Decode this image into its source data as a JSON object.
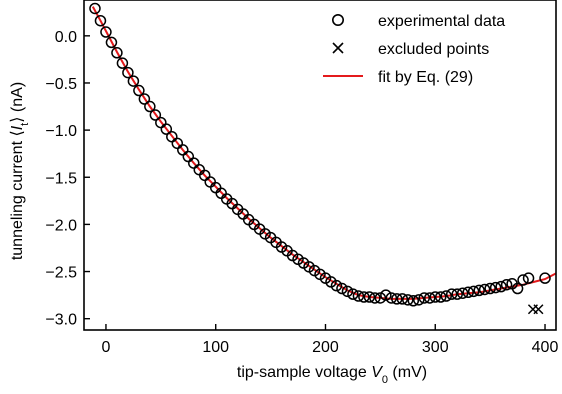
{
  "chart_data": {
    "type": "scatter",
    "xlabel": {
      "pre": "tip-sample voltage ",
      "var": "V",
      "sub": "0",
      "post": "  (mV)"
    },
    "ylabel": {
      "pre": "tunneling current  ⟨",
      "var": "I",
      "sub": "t",
      "post": "⟩  (nA)"
    },
    "xlim": [
      -20,
      410
    ],
    "ylim": [
      -3.12,
      0.38
    ],
    "xticks": [
      0,
      100,
      200,
      300,
      400
    ],
    "xtick_labels": [
      "0",
      "100",
      "200",
      "300",
      "400"
    ],
    "yticks": [
      0.0,
      -0.5,
      -1.0,
      -1.5,
      -2.0,
      -2.5,
      -3.0
    ],
    "ytick_labels": [
      "0.0",
      "−0.5",
      "−1.0",
      "−1.5",
      "−2.0",
      "−2.5",
      "−3.0"
    ],
    "grid": false,
    "legend_position": "top-right",
    "legend": [
      {
        "label": "experimental data",
        "marker": "open-circle"
      },
      {
        "label": "excluded points",
        "marker": "cross"
      },
      {
        "label": "fit by Eq. (29)",
        "marker": "line"
      }
    ],
    "colors": {
      "data": "#000000",
      "fit": "#e41a1c"
    },
    "series": [
      {
        "name": "experimental data",
        "marker": "open-circle",
        "x": [
          -10,
          -5,
          0,
          5,
          10,
          15,
          20,
          25,
          30,
          35,
          40,
          45,
          50,
          55,
          60,
          65,
          70,
          75,
          80,
          85,
          90,
          95,
          100,
          105,
          110,
          115,
          120,
          125,
          130,
          135,
          140,
          145,
          150,
          155,
          160,
          165,
          170,
          175,
          180,
          185,
          190,
          195,
          200,
          205,
          210,
          215,
          220,
          225,
          230,
          235,
          240,
          245,
          250,
          255,
          260,
          265,
          270,
          275,
          280,
          285,
          290,
          295,
          300,
          305,
          310,
          315,
          320,
          325,
          330,
          335,
          340,
          345,
          350,
          355,
          360,
          365,
          370,
          375,
          380,
          385,
          400
        ],
        "y": [
          0.29,
          0.16,
          0.04,
          -0.07,
          -0.18,
          -0.29,
          -0.39,
          -0.48,
          -0.58,
          -0.67,
          -0.75,
          -0.84,
          -0.92,
          -0.99,
          -1.07,
          -1.14,
          -1.21,
          -1.28,
          -1.35,
          -1.42,
          -1.48,
          -1.55,
          -1.61,
          -1.67,
          -1.73,
          -1.78,
          -1.84,
          -1.89,
          -1.95,
          -2.0,
          -2.05,
          -2.1,
          -2.14,
          -2.19,
          -2.24,
          -2.28,
          -2.33,
          -2.37,
          -2.41,
          -2.45,
          -2.49,
          -2.53,
          -2.57,
          -2.61,
          -2.65,
          -2.68,
          -2.71,
          -2.74,
          -2.76,
          -2.77,
          -2.77,
          -2.78,
          -2.78,
          -2.75,
          -2.78,
          -2.79,
          -2.79,
          -2.8,
          -2.81,
          -2.8,
          -2.78,
          -2.78,
          -2.77,
          -2.77,
          -2.76,
          -2.74,
          -2.74,
          -2.73,
          -2.72,
          -2.71,
          -2.7,
          -2.69,
          -2.68,
          -2.67,
          -2.66,
          -2.64,
          -2.63,
          -2.68,
          -2.59,
          -2.57,
          -2.57
        ]
      },
      {
        "name": "excluded points",
        "marker": "cross",
        "x": [
          389,
          394
        ],
        "y": [
          -2.9,
          -2.9
        ]
      },
      {
        "name": "fit by Eq. (29)",
        "marker": "line",
        "x": [
          -12,
          -5,
          0,
          10,
          20,
          30,
          40,
          50,
          60,
          70,
          80,
          90,
          100,
          110,
          120,
          130,
          140,
          150,
          160,
          170,
          180,
          190,
          200,
          210,
          220,
          230,
          240,
          250,
          260,
          270,
          280,
          290,
          300,
          310,
          320,
          330,
          340,
          350,
          360,
          370,
          380,
          390,
          400,
          410
        ],
        "y": [
          0.31,
          0.16,
          0.05,
          -0.17,
          -0.38,
          -0.57,
          -0.75,
          -0.91,
          -1.06,
          -1.21,
          -1.35,
          -1.48,
          -1.6,
          -1.72,
          -1.83,
          -1.94,
          -2.04,
          -2.14,
          -2.23,
          -2.32,
          -2.4,
          -2.48,
          -2.56,
          -2.63,
          -2.7,
          -2.75,
          -2.77,
          -2.78,
          -2.79,
          -2.79,
          -2.79,
          -2.78,
          -2.77,
          -2.76,
          -2.74,
          -2.73,
          -2.72,
          -2.7,
          -2.68,
          -2.66,
          -2.64,
          -2.61,
          -2.58,
          -2.52
        ]
      }
    ]
  }
}
